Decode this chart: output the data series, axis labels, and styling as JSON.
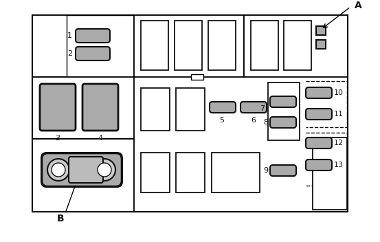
{
  "fig_width": 5.53,
  "fig_height": 3.52,
  "bg_color": "#ffffff",
  "gray_fuse": "#aaaaaa",
  "dark_outline": "#111111"
}
